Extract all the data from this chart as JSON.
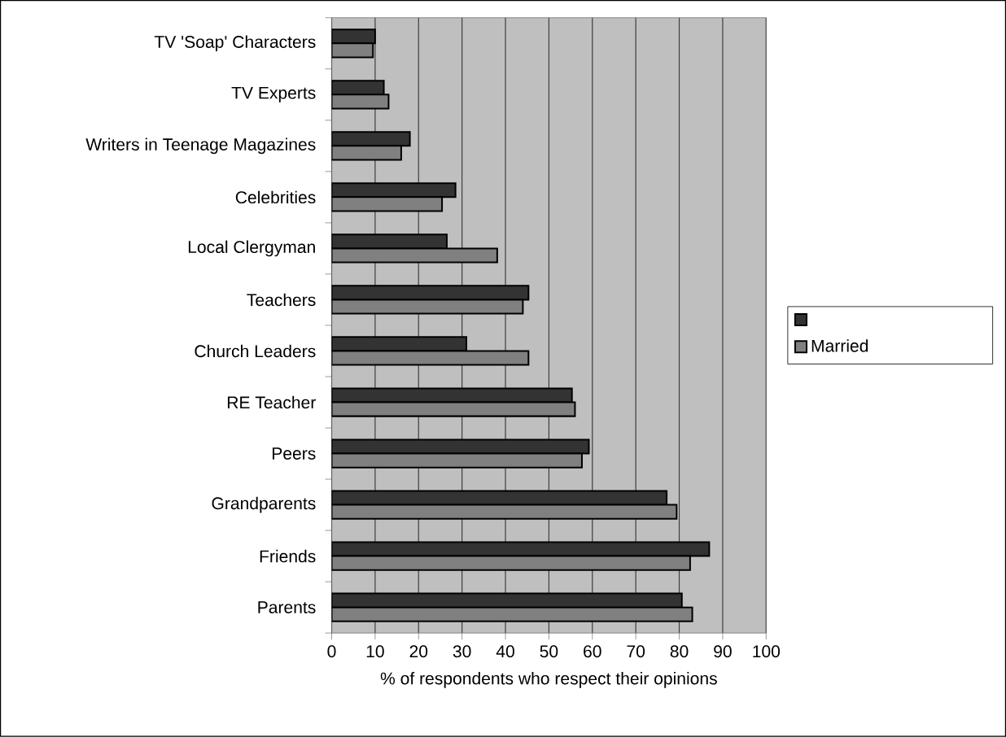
{
  "chart_data": {
    "type": "bar",
    "orientation": "horizontal",
    "xlabel": "% of respondents who respect their opinions",
    "categories": [
      "TV 'Soap' Characters",
      "TV Experts",
      "Writers in Teenage Magazines",
      "Celebrities",
      "Local Clergyman",
      "Teachers",
      "Church Leaders",
      "RE Teacher",
      "Peers",
      "Grandparents",
      "Friends",
      "Parents"
    ],
    "series": [
      {
        "color": "#333333",
        "values": [
          10,
          12,
          18,
          28.5,
          26.5,
          45.3,
          31,
          55.3,
          59.2,
          77.1,
          86.9,
          80.6
        ]
      },
      {
        "name": "Married",
        "color": "#808080",
        "values": [
          9.5,
          13.1,
          16,
          25.4,
          38.1,
          44,
          45.3,
          56,
          57.6,
          79.4,
          82.5,
          83
        ]
      }
    ],
    "xlim": [
      0,
      100
    ],
    "xticks": [
      0,
      10,
      20,
      30,
      40,
      50,
      60,
      70,
      80,
      90,
      100
    ],
    "grid": "x",
    "legend": "right"
  }
}
